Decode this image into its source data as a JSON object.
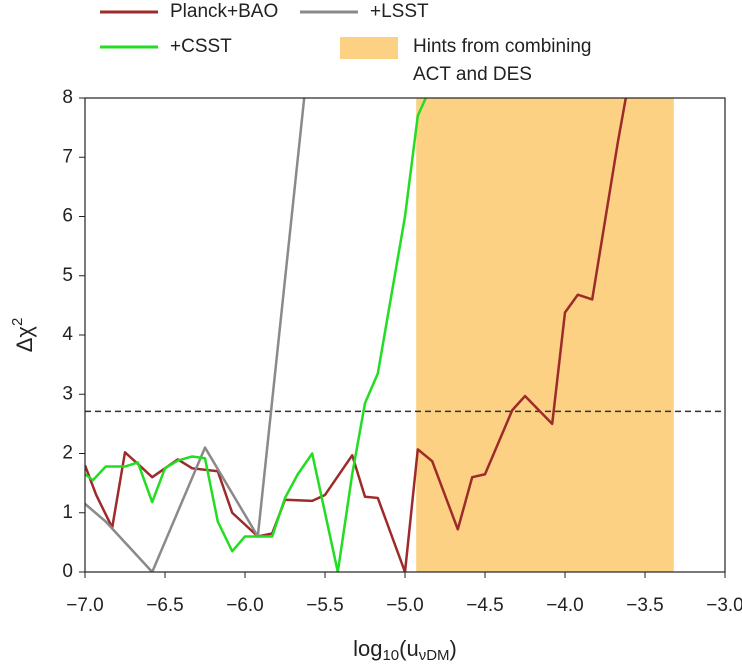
{
  "chart_data": {
    "type": "line",
    "xlabel": [
      "log",
      "10",
      "(u",
      "νDM",
      ")"
    ],
    "ylabel": [
      "Δχ",
      "2"
    ],
    "xlim": [
      -7.0,
      -3.0
    ],
    "ylim": [
      0,
      8
    ],
    "xticks": [
      {
        "value": -7.0,
        "label": "−7.0"
      },
      {
        "value": -6.5,
        "label": "−6.5"
      },
      {
        "value": -6.0,
        "label": "−6.0"
      },
      {
        "value": -5.5,
        "label": "−5.5"
      },
      {
        "value": -5.0,
        "label": "−5.0"
      },
      {
        "value": -4.5,
        "label": "−4.5"
      },
      {
        "value": -4.0,
        "label": "−4.0"
      },
      {
        "value": -3.5,
        "label": "−3.5"
      },
      {
        "value": -3.0,
        "label": "−3.0"
      }
    ],
    "yticks": [
      0,
      1,
      2,
      3,
      4,
      5,
      6,
      7,
      8
    ],
    "threshold": 2.71,
    "band": {
      "name": [
        "Hints from combining",
        "ACT and DES"
      ],
      "color": "#fcd183",
      "range": [
        -4.93,
        -3.32
      ]
    },
    "series": [
      {
        "name": "Planck+BAO",
        "color": "#9e2b2b",
        "x": [
          -7.0,
          -6.93,
          -6.83,
          -6.75,
          -6.66,
          -6.58,
          -6.42,
          -6.33,
          -6.17,
          -6.08,
          -5.92,
          -5.83,
          -5.75,
          -5.58,
          -5.5,
          -5.33,
          -5.25,
          -5.17,
          -5.0,
          -4.92,
          -4.83,
          -4.67,
          -4.58,
          -4.5,
          -4.33,
          -4.25,
          -4.08,
          -4.0,
          -3.92,
          -3.83,
          -3.67,
          -3.62
        ],
        "values": [
          1.8,
          1.3,
          0.75,
          2.02,
          1.8,
          1.6,
          1.9,
          1.75,
          1.7,
          1.0,
          0.6,
          0.65,
          1.22,
          1.2,
          1.3,
          1.97,
          1.27,
          1.25,
          0.0,
          2.07,
          1.87,
          0.72,
          1.6,
          1.65,
          2.73,
          2.97,
          2.5,
          4.38,
          4.68,
          4.6,
          7.25,
          8.0
        ]
      },
      {
        "name": "+LSST",
        "color": "#8a8a8a",
        "x": [
          -7.0,
          -6.87,
          -6.58,
          -6.25,
          -5.92,
          -5.63
        ],
        "values": [
          1.15,
          0.85,
          0.0,
          2.1,
          0.6,
          8.0
        ]
      },
      {
        "name": "+CSST",
        "color": "#22dd22",
        "x": [
          -7.0,
          -6.95,
          -6.87,
          -6.75,
          -6.67,
          -6.58,
          -6.5,
          -6.42,
          -6.33,
          -6.25,
          -6.17,
          -6.08,
          -6.0,
          -5.83,
          -5.75,
          -5.67,
          -5.58,
          -5.42,
          -5.33,
          -5.25,
          -5.17,
          -5.0,
          -4.92,
          -4.87
        ],
        "values": [
          1.65,
          1.55,
          1.78,
          1.78,
          1.85,
          1.18,
          1.75,
          1.88,
          1.95,
          1.92,
          0.85,
          0.35,
          0.6,
          0.6,
          1.25,
          1.65,
          2.0,
          0.0,
          1.65,
          2.85,
          3.35,
          6.0,
          7.7,
          8.0
        ]
      }
    ]
  }
}
